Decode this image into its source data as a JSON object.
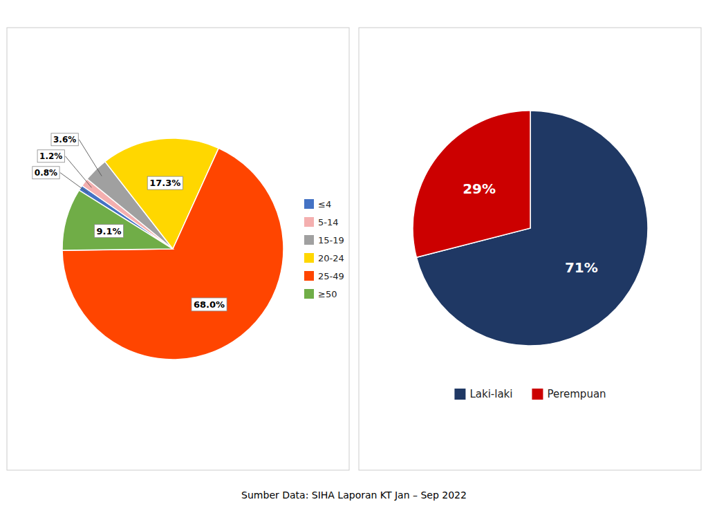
{
  "chart_data": [
    {
      "type": "pie",
      "categories": [
        "≤4",
        "5-14",
        "15-19",
        "20-24",
        "25-49",
        "≥50"
      ],
      "values": [
        0.8,
        1.2,
        3.6,
        17.3,
        68.0,
        9.1
      ],
      "value_labels": [
        "0.8%",
        "1.2%",
        "3.6%",
        "17.3%",
        "68.0%",
        "9.1%"
      ],
      "colors": [
        "#4472C4",
        "#F4AFAF",
        "#A0A0A0",
        "#FFD700",
        "#FF4500",
        "#70AD47"
      ],
      "data_labels": true,
      "legend": "right",
      "annotations": [
        "Sumber Data: SIHA Laporan KT Jan – Sep 2022"
      ]
    },
    {
      "type": "pie",
      "categories": [
        "Laki-laki",
        "Perempuan"
      ],
      "values": [
        71,
        29
      ],
      "value_labels": [
        "71%",
        "29%"
      ],
      "colors": [
        "#1F3864",
        "#CC0000"
      ],
      "data_labels": true,
      "legend": "bottom"
    }
  ]
}
